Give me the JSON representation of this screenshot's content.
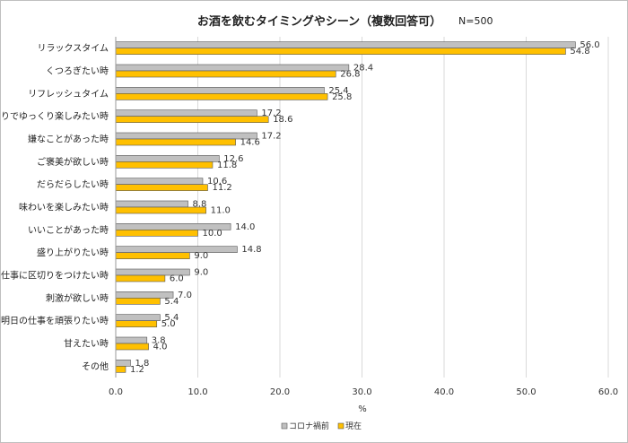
{
  "chart_data": {
    "type": "bar",
    "orientation": "horizontal",
    "title": "お酒を飲むタイミングやシーン（複数回答可）",
    "note": "N=500",
    "xlabel": "%",
    "xlim": [
      0,
      60
    ],
    "xticks": [
      "0.0",
      "10.0",
      "20.0",
      "30.0",
      "40.0",
      "50.0",
      "60.0"
    ],
    "grid": true,
    "legend_position": "bottom",
    "categories": [
      "リラックスタイム",
      "くつろぎたい時",
      "リフレッシュタイム",
      "ひとりでゆっくり楽しみたい時",
      "嫌なことがあった時",
      "ご褒美が欲しい時",
      "だらだらしたい時",
      "味わいを楽しみたい時",
      "いいことがあった時",
      "盛り上がりたい時",
      "仕事に区切りをつけたい時",
      "刺激が欲しい時",
      "明日の仕事を頑張りたい時",
      "甘えたい時",
      "その他"
    ],
    "series": [
      {
        "name": "コロナ禍前",
        "color": "#c0c0c0",
        "values": [
          56.0,
          28.4,
          25.4,
          17.2,
          17.2,
          12.6,
          10.6,
          8.8,
          14.0,
          14.8,
          9.0,
          7.0,
          5.4,
          3.8,
          1.8
        ]
      },
      {
        "name": "現在",
        "color": "#ffc000",
        "values": [
          54.8,
          26.8,
          25.8,
          18.6,
          14.6,
          11.8,
          11.2,
          11.0,
          10.0,
          9.0,
          6.0,
          5.4,
          5.0,
          4.0,
          1.2
        ]
      }
    ]
  }
}
